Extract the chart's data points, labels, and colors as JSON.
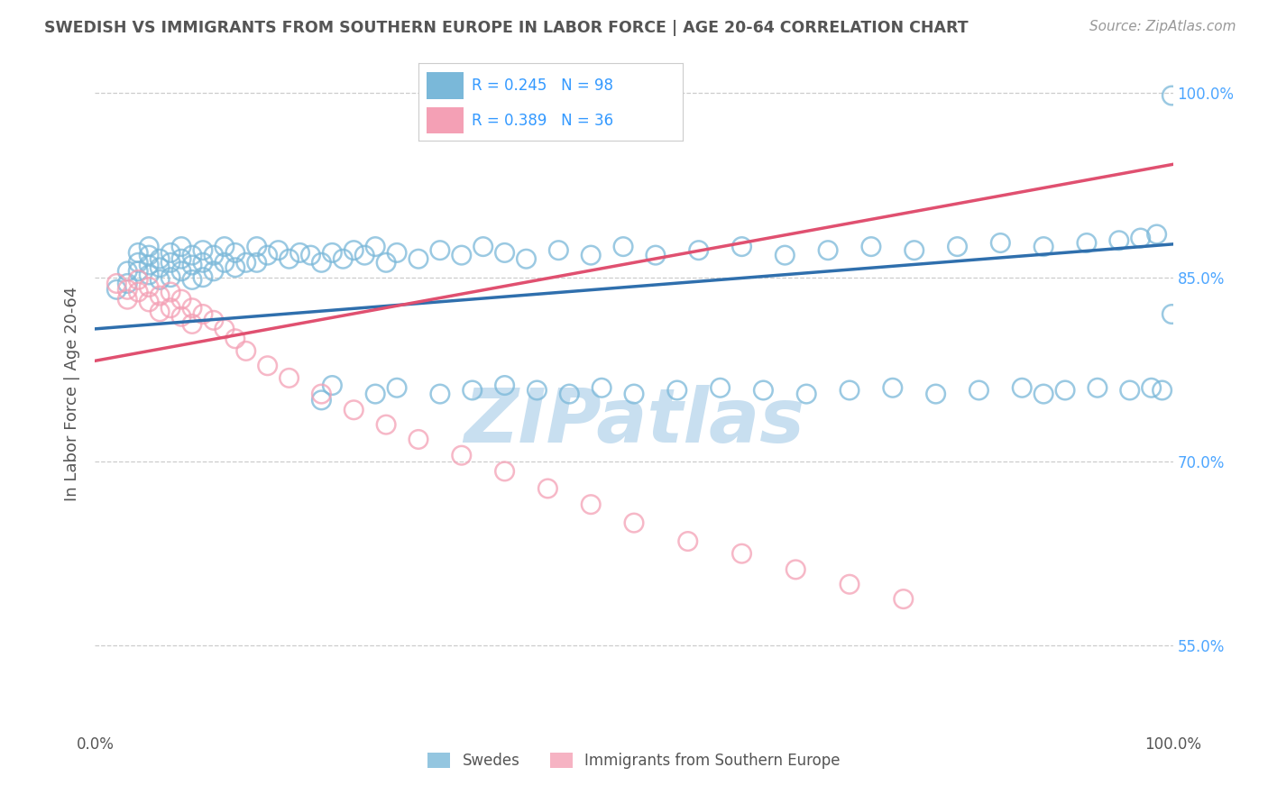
{
  "title": "SWEDISH VS IMMIGRANTS FROM SOUTHERN EUROPE IN LABOR FORCE | AGE 20-64 CORRELATION CHART",
  "source": "Source: ZipAtlas.com",
  "ylabel": "In Labor Force | Age 20-64",
  "xlim": [
    0.0,
    1.0
  ],
  "ylim": [
    0.48,
    1.03
  ],
  "yticks": [
    0.55,
    0.7,
    0.85,
    1.0
  ],
  "xticks": [
    0.0,
    1.0
  ],
  "xtick_labels": [
    "0.0%",
    "100.0%"
  ],
  "ytick_labels": [
    "55.0%",
    "70.0%",
    "85.0%",
    "100.0%"
  ],
  "legend_R_blue": "R = 0.245",
  "legend_N_blue": "N = 98",
  "legend_R_pink": "R = 0.389",
  "legend_N_pink": "N = 36",
  "blue_scatter_color": "#7ab8d9",
  "pink_scatter_color": "#f4a0b5",
  "blue_line_color": "#2f6fad",
  "pink_line_color": "#e05070",
  "axis_text_color": "#555555",
  "right_tick_color": "#4da6ff",
  "legend_val_color": "#3399ff",
  "legend_label_color": "#222222",
  "grid_color": "#cccccc",
  "background_color": "#ffffff",
  "watermark_color": "#c8dff0",
  "swedes_label": "Swedes",
  "immigrants_label": "Immigrants from Southern Europe",
  "blue_line_x0": 0.0,
  "blue_line_y0": 0.808,
  "blue_line_x1": 1.0,
  "blue_line_y1": 0.877,
  "pink_line_x0": 0.0,
  "pink_line_y0": 0.782,
  "pink_line_x1": 1.0,
  "pink_line_y1": 0.942,
  "blue_x": [
    0.02,
    0.03,
    0.03,
    0.04,
    0.04,
    0.04,
    0.05,
    0.05,
    0.05,
    0.05,
    0.06,
    0.06,
    0.06,
    0.07,
    0.07,
    0.07,
    0.08,
    0.08,
    0.08,
    0.09,
    0.09,
    0.09,
    0.1,
    0.1,
    0.1,
    0.11,
    0.11,
    0.12,
    0.12,
    0.13,
    0.13,
    0.14,
    0.15,
    0.15,
    0.16,
    0.17,
    0.18,
    0.19,
    0.2,
    0.21,
    0.22,
    0.23,
    0.24,
    0.25,
    0.26,
    0.27,
    0.28,
    0.3,
    0.32,
    0.34,
    0.36,
    0.38,
    0.4,
    0.43,
    0.46,
    0.49,
    0.52,
    0.56,
    0.6,
    0.64,
    0.68,
    0.72,
    0.76,
    0.8,
    0.84,
    0.88,
    0.92,
    0.95,
    0.97,
    0.985,
    0.21,
    0.22,
    0.26,
    0.28,
    0.32,
    0.35,
    0.38,
    0.41,
    0.44,
    0.47,
    0.5,
    0.54,
    0.58,
    0.62,
    0.66,
    0.7,
    0.74,
    0.78,
    0.82,
    0.86,
    0.88,
    0.9,
    0.93,
    0.96,
    0.98,
    0.99,
    0.999,
    0.999
  ],
  "blue_y": [
    0.84,
    0.855,
    0.845,
    0.87,
    0.862,
    0.855,
    0.875,
    0.868,
    0.86,
    0.852,
    0.865,
    0.858,
    0.848,
    0.87,
    0.862,
    0.85,
    0.875,
    0.865,
    0.855,
    0.868,
    0.86,
    0.848,
    0.872,
    0.862,
    0.85,
    0.868,
    0.855,
    0.875,
    0.862,
    0.87,
    0.858,
    0.862,
    0.875,
    0.862,
    0.868,
    0.872,
    0.865,
    0.87,
    0.868,
    0.862,
    0.87,
    0.865,
    0.872,
    0.868,
    0.875,
    0.862,
    0.87,
    0.865,
    0.872,
    0.868,
    0.875,
    0.87,
    0.865,
    0.872,
    0.868,
    0.875,
    0.868,
    0.872,
    0.875,
    0.868,
    0.872,
    0.875,
    0.872,
    0.875,
    0.878,
    0.875,
    0.878,
    0.88,
    0.882,
    0.885,
    0.75,
    0.762,
    0.755,
    0.76,
    0.755,
    0.758,
    0.762,
    0.758,
    0.755,
    0.76,
    0.755,
    0.758,
    0.76,
    0.758,
    0.755,
    0.758,
    0.76,
    0.755,
    0.758,
    0.76,
    0.755,
    0.758,
    0.76,
    0.758,
    0.76,
    0.758,
    0.998,
    0.82
  ],
  "pink_x": [
    0.02,
    0.03,
    0.03,
    0.04,
    0.04,
    0.05,
    0.05,
    0.06,
    0.06,
    0.07,
    0.07,
    0.08,
    0.08,
    0.09,
    0.09,
    0.1,
    0.11,
    0.12,
    0.13,
    0.14,
    0.16,
    0.18,
    0.21,
    0.24,
    0.27,
    0.3,
    0.34,
    0.38,
    0.42,
    0.46,
    0.5,
    0.55,
    0.6,
    0.65,
    0.7,
    0.75
  ],
  "pink_y": [
    0.845,
    0.84,
    0.832,
    0.848,
    0.838,
    0.842,
    0.83,
    0.835,
    0.822,
    0.838,
    0.825,
    0.832,
    0.818,
    0.825,
    0.812,
    0.82,
    0.815,
    0.808,
    0.8,
    0.79,
    0.778,
    0.768,
    0.755,
    0.742,
    0.73,
    0.718,
    0.705,
    0.692,
    0.678,
    0.665,
    0.65,
    0.635,
    0.625,
    0.612,
    0.6,
    0.588
  ]
}
